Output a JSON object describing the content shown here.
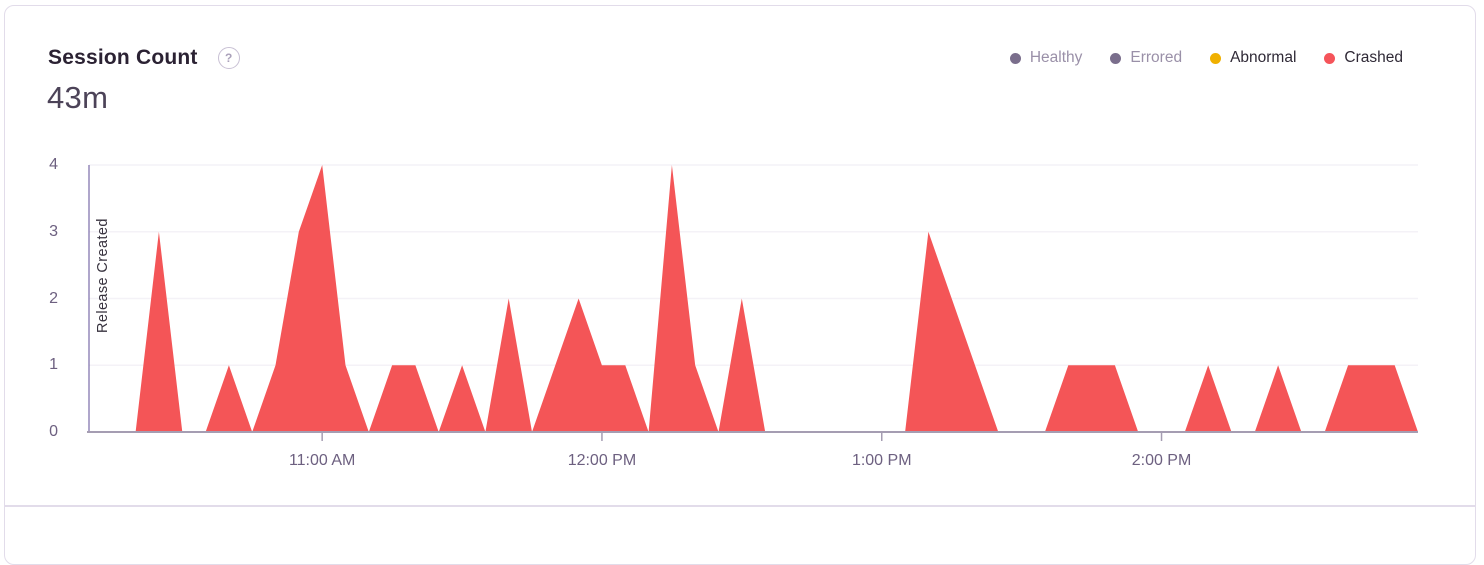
{
  "card": {
    "title": "Session Count",
    "help_icon": "?",
    "total": "43m"
  },
  "legend": {
    "items": [
      {
        "label": "Healthy",
        "color": "#7A6E8C",
        "active": false
      },
      {
        "label": "Errored",
        "color": "#7A6E8C",
        "active": false
      },
      {
        "label": "Abnormal",
        "color": "#F0B000",
        "active": true
      },
      {
        "label": "Crashed",
        "color": "#F5545A",
        "active": true
      }
    ]
  },
  "chart_data": {
    "type": "area",
    "title": "Session Count",
    "total_label": "43m",
    "x_start": "10:10 AM",
    "x_start_minutes": 610,
    "x_step_minutes": 5,
    "series": [
      {
        "name": "Crashed",
        "color": "#F45557",
        "values": [
          0,
          0,
          0,
          3,
          0,
          0,
          1,
          0,
          1,
          3,
          4,
          1,
          0,
          1,
          1,
          0,
          1,
          0,
          2,
          0,
          1,
          2,
          1,
          1,
          0,
          4,
          1,
          0,
          2,
          0,
          0,
          0,
          0,
          0,
          0,
          0,
          3,
          2,
          1,
          0,
          0,
          0,
          1,
          1,
          1,
          0,
          0,
          0,
          1,
          0,
          0,
          1,
          0,
          0,
          1,
          1,
          1,
          0
        ]
      }
    ],
    "ylim": [
      0,
      4
    ],
    "yticks": [
      0,
      1,
      2,
      3,
      4
    ],
    "xticks": [
      {
        "minutes": 660,
        "label": "11:00 AM"
      },
      {
        "minutes": 720,
        "label": "12:00 PM"
      },
      {
        "minutes": 780,
        "label": "1:00 PM"
      },
      {
        "minutes": 840,
        "label": "2:00 PM"
      }
    ],
    "grid": "horizontal",
    "legend_position": "top-right",
    "annotation": {
      "label": "Release Created",
      "at_minutes": 610
    }
  }
}
